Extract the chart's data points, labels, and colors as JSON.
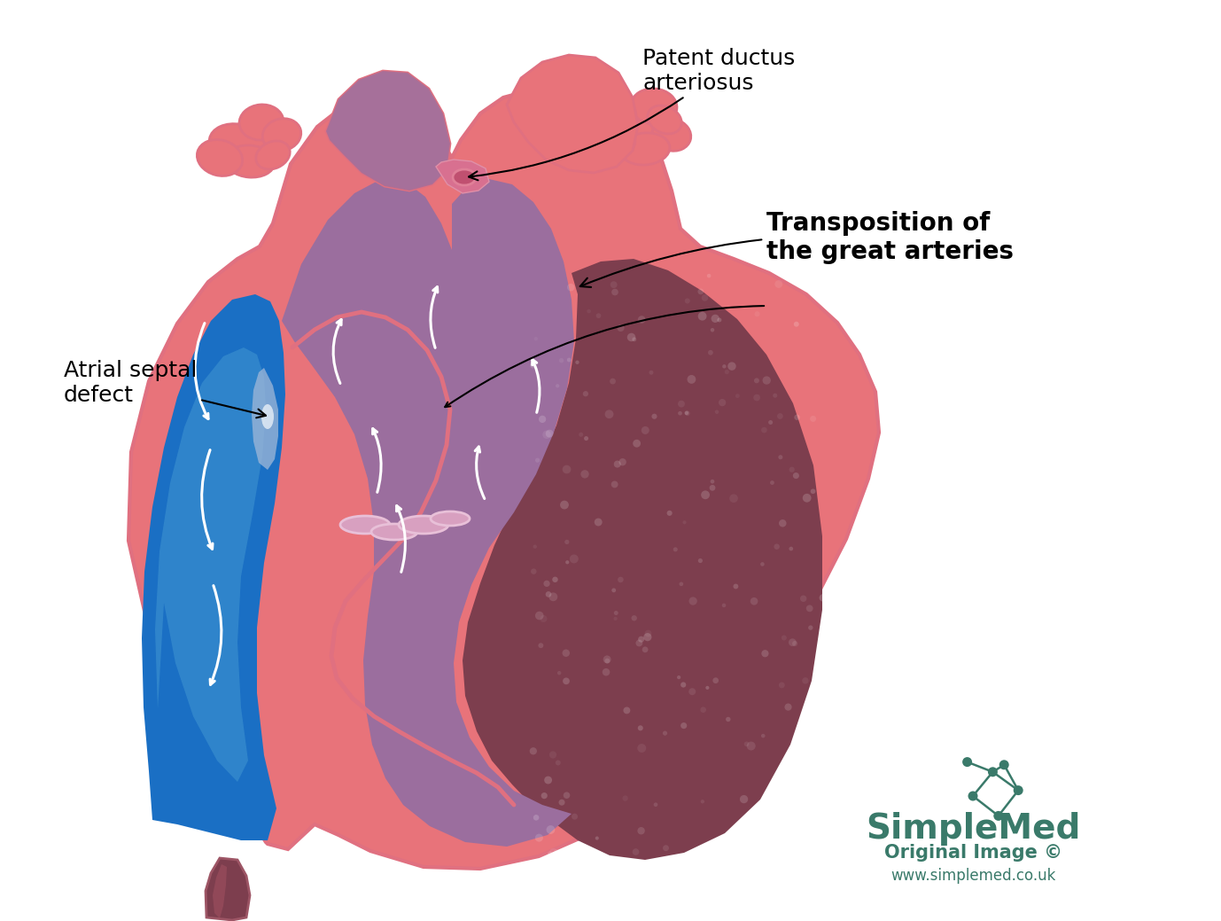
{
  "background_color": "#ffffff",
  "heart_outer_color": "#e8737a",
  "heart_inner_purple_color": "#9b6e9e",
  "heart_dark_red_color": "#7d3e4e",
  "heart_blue_color": "#1a6fc4",
  "heart_pink_stroke": "#e07080",
  "simplemed_color": "#3a7a6a",
  "annotation_color": "#000000",
  "annotation_font_size": 18,
  "bold_font_size": 20,
  "simplemed_font_size": 28,
  "label_patent_ductus": "Patent ductus\narteriosus",
  "label_atrial_septal": "Atrial septal\ndefect",
  "label_transposition": "Transposition of\nthe great arteries",
  "label_simplemed": "SimpleMed",
  "label_original": "Original Image ©",
  "label_website": "www.simplemed.co.uk"
}
